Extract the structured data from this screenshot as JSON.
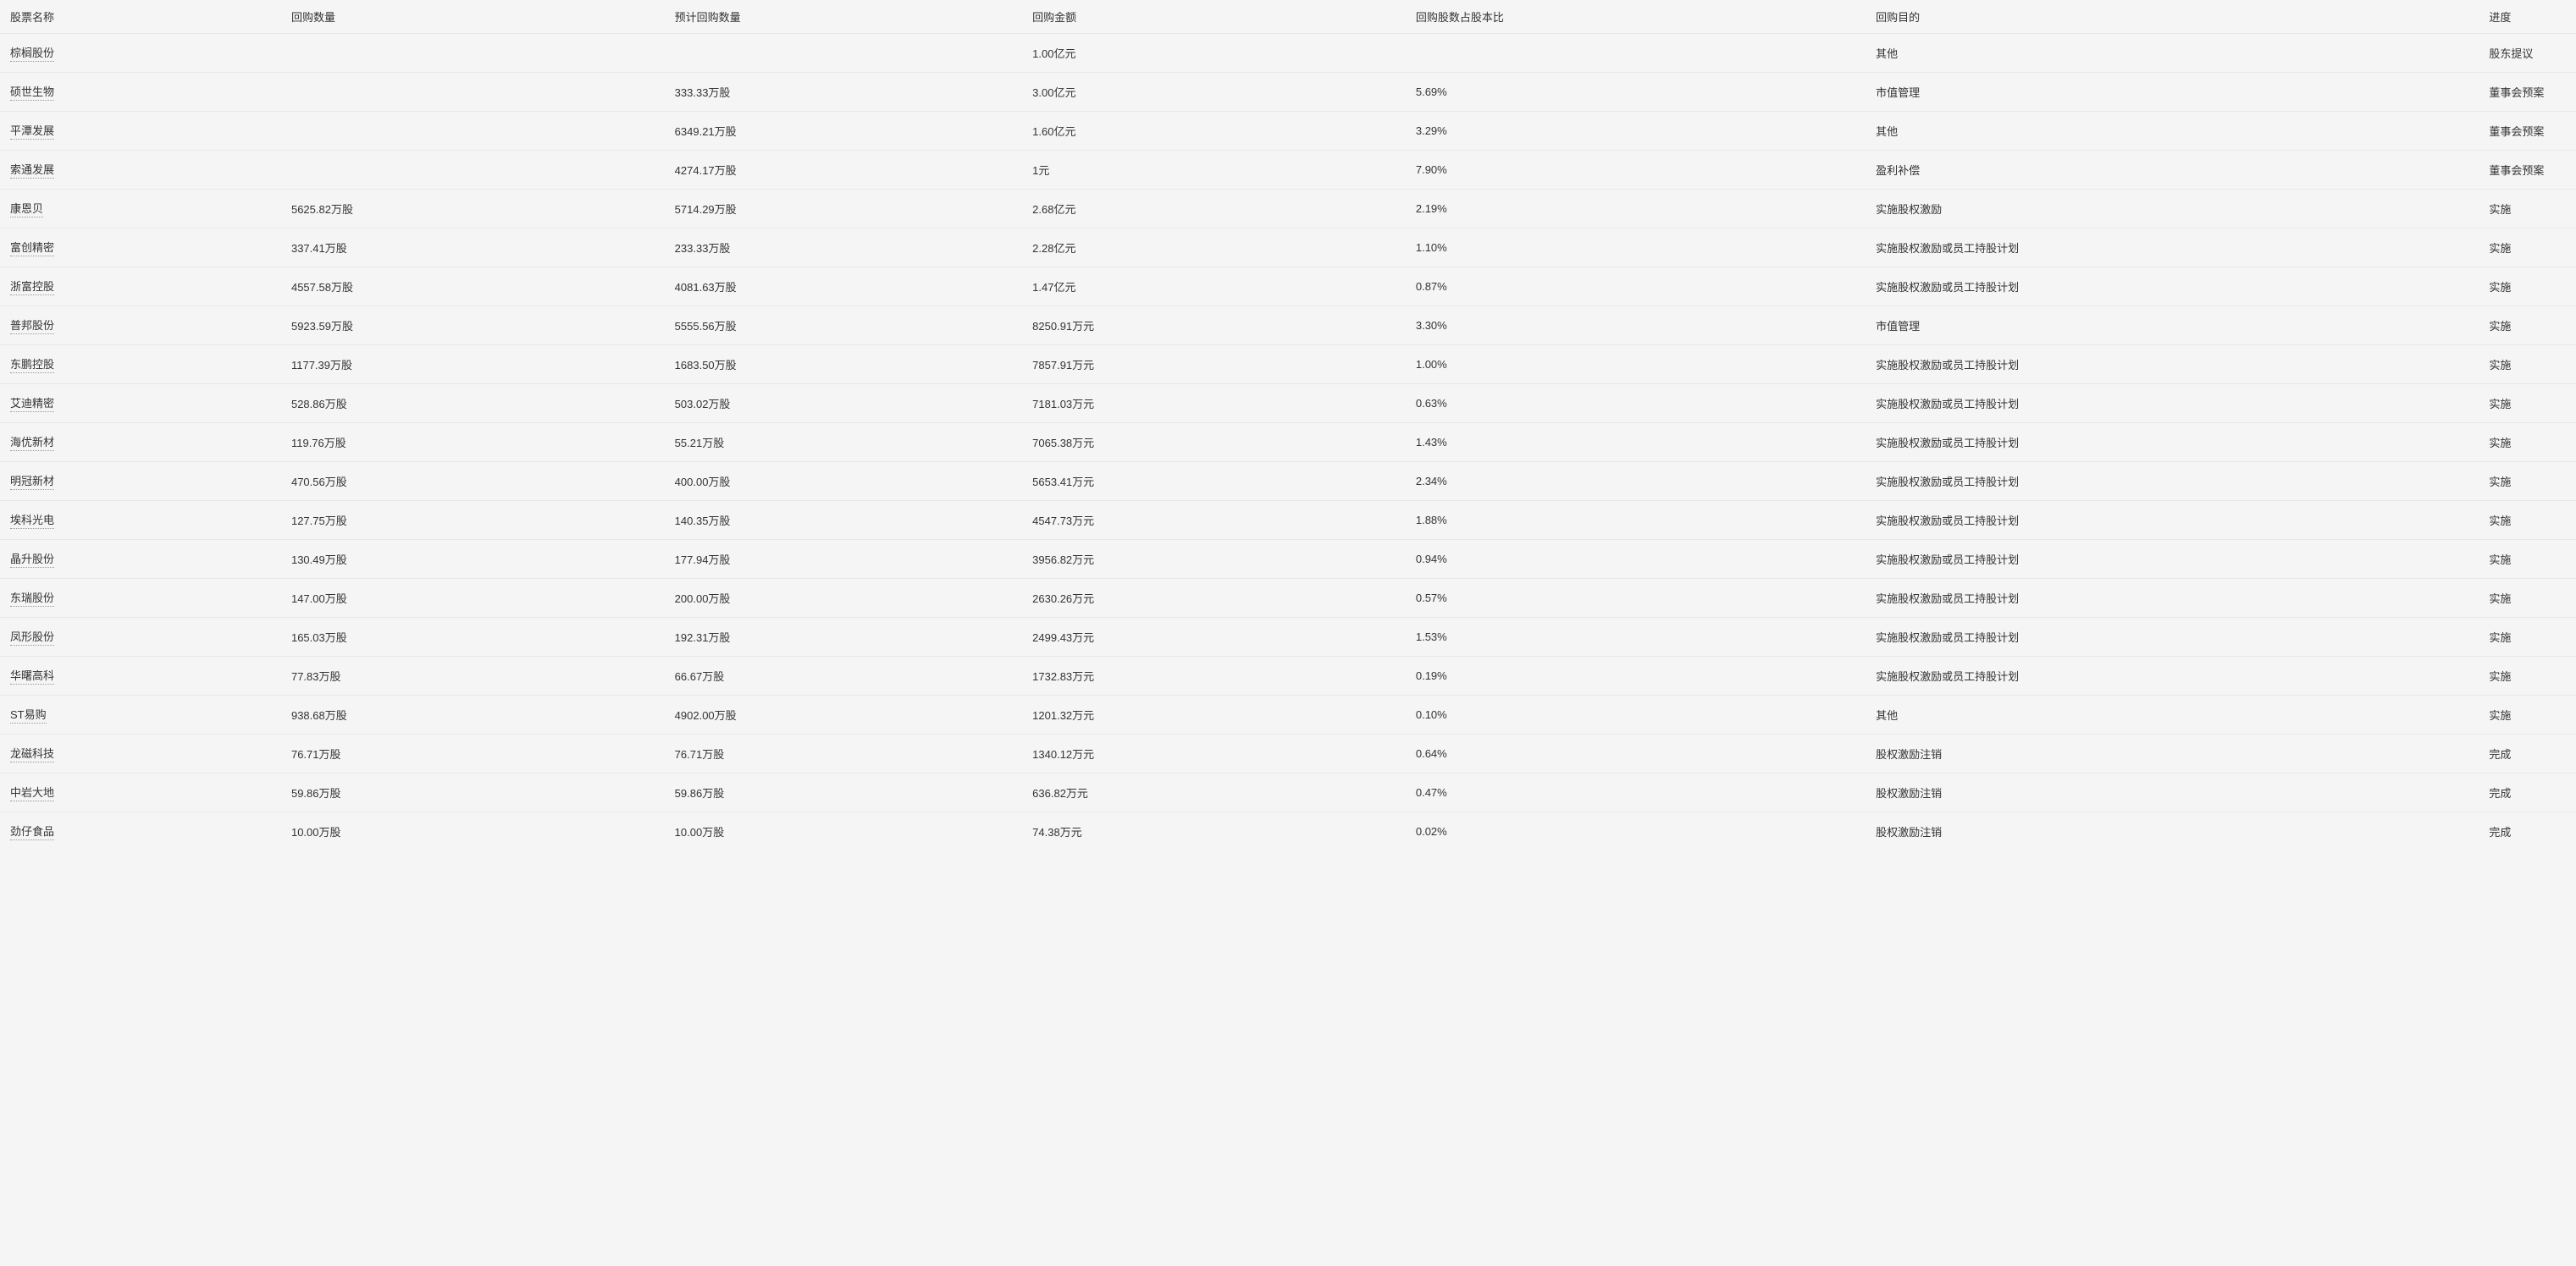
{
  "table": {
    "columns": {
      "name": "股票名称",
      "quantity": "回购数量",
      "estimated_quantity": "预计回购数量",
      "amount": "回购金额",
      "ratio": "回购股数占股本比",
      "purpose": "回购目的",
      "progress": "进度"
    },
    "rows": [
      {
        "name": "棕榈股份",
        "quantity": "",
        "estimated_quantity": "",
        "amount": "1.00亿元",
        "ratio": "",
        "purpose": "其他",
        "progress": "股东提议"
      },
      {
        "name": "硕世生物",
        "quantity": "",
        "estimated_quantity": "333.33万股",
        "amount": "3.00亿元",
        "ratio": "5.69%",
        "purpose": "市值管理",
        "progress": "董事会预案"
      },
      {
        "name": "平潭发展",
        "quantity": "",
        "estimated_quantity": "6349.21万股",
        "amount": "1.60亿元",
        "ratio": "3.29%",
        "purpose": "其他",
        "progress": "董事会预案"
      },
      {
        "name": "索通发展",
        "quantity": "",
        "estimated_quantity": "4274.17万股",
        "amount": "1元",
        "ratio": "7.90%",
        "purpose": "盈利补偿",
        "progress": "董事会预案"
      },
      {
        "name": "康恩贝",
        "quantity": "5625.82万股",
        "estimated_quantity": "5714.29万股",
        "amount": "2.68亿元",
        "ratio": "2.19%",
        "purpose": "实施股权激励",
        "progress": "实施"
      },
      {
        "name": "富创精密",
        "quantity": "337.41万股",
        "estimated_quantity": "233.33万股",
        "amount": "2.28亿元",
        "ratio": "1.10%",
        "purpose": "实施股权激励或员工持股计划",
        "progress": "实施"
      },
      {
        "name": "浙富控股",
        "quantity": "4557.58万股",
        "estimated_quantity": "4081.63万股",
        "amount": "1.47亿元",
        "ratio": "0.87%",
        "purpose": "实施股权激励或员工持股计划",
        "progress": "实施"
      },
      {
        "name": "普邦股份",
        "quantity": "5923.59万股",
        "estimated_quantity": "5555.56万股",
        "amount": "8250.91万元",
        "ratio": "3.30%",
        "purpose": "市值管理",
        "progress": "实施"
      },
      {
        "name": "东鹏控股",
        "quantity": "1177.39万股",
        "estimated_quantity": "1683.50万股",
        "amount": "7857.91万元",
        "ratio": "1.00%",
        "purpose": "实施股权激励或员工持股计划",
        "progress": "实施"
      },
      {
        "name": "艾迪精密",
        "quantity": "528.86万股",
        "estimated_quantity": "503.02万股",
        "amount": "7181.03万元",
        "ratio": "0.63%",
        "purpose": "实施股权激励或员工持股计划",
        "progress": "实施"
      },
      {
        "name": "海优新材",
        "quantity": "119.76万股",
        "estimated_quantity": "55.21万股",
        "amount": "7065.38万元",
        "ratio": "1.43%",
        "purpose": "实施股权激励或员工持股计划",
        "progress": "实施"
      },
      {
        "name": "明冠新材",
        "quantity": "470.56万股",
        "estimated_quantity": "400.00万股",
        "amount": "5653.41万元",
        "ratio": "2.34%",
        "purpose": "实施股权激励或员工持股计划",
        "progress": "实施"
      },
      {
        "name": "埃科光电",
        "quantity": "127.75万股",
        "estimated_quantity": "140.35万股",
        "amount": "4547.73万元",
        "ratio": "1.88%",
        "purpose": "实施股权激励或员工持股计划",
        "progress": "实施"
      },
      {
        "name": "晶升股份",
        "quantity": "130.49万股",
        "estimated_quantity": "177.94万股",
        "amount": "3956.82万元",
        "ratio": "0.94%",
        "purpose": "实施股权激励或员工持股计划",
        "progress": "实施"
      },
      {
        "name": "东瑞股份",
        "quantity": "147.00万股",
        "estimated_quantity": "200.00万股",
        "amount": "2630.26万元",
        "ratio": "0.57%",
        "purpose": "实施股权激励或员工持股计划",
        "progress": "实施"
      },
      {
        "name": "凤形股份",
        "quantity": "165.03万股",
        "estimated_quantity": "192.31万股",
        "amount": "2499.43万元",
        "ratio": "1.53%",
        "purpose": "实施股权激励或员工持股计划",
        "progress": "实施"
      },
      {
        "name": "华曙高科",
        "quantity": "77.83万股",
        "estimated_quantity": "66.67万股",
        "amount": "1732.83万元",
        "ratio": "0.19%",
        "purpose": "实施股权激励或员工持股计划",
        "progress": "实施"
      },
      {
        "name": "ST易购",
        "quantity": "938.68万股",
        "estimated_quantity": "4902.00万股",
        "amount": "1201.32万元",
        "ratio": "0.10%",
        "purpose": "其他",
        "progress": "实施"
      },
      {
        "name": "龙磁科技",
        "quantity": "76.71万股",
        "estimated_quantity": "76.71万股",
        "amount": "1340.12万元",
        "ratio": "0.64%",
        "purpose": "股权激励注销",
        "progress": "完成"
      },
      {
        "name": "中岩大地",
        "quantity": "59.86万股",
        "estimated_quantity": "59.86万股",
        "amount": "636.82万元",
        "ratio": "0.47%",
        "purpose": "股权激励注销",
        "progress": "完成"
      },
      {
        "name": "劲仔食品",
        "quantity": "10.00万股",
        "estimated_quantity": "10.00万股",
        "amount": "74.38万元",
        "ratio": "0.02%",
        "purpose": "股权激励注销",
        "progress": "完成"
      }
    ],
    "styling": {
      "background_color": "#f5f5f5",
      "border_color": "#e8e8e8",
      "text_color": "#333333",
      "link_underline_color": "#999999",
      "font_size": 13,
      "row_padding": 12,
      "column_widths_pct": {
        "name": 11,
        "quantity": 15,
        "estimated_quantity": 14,
        "amount": 15,
        "ratio": 18,
        "purpose": 24,
        "progress": 5
      }
    }
  }
}
